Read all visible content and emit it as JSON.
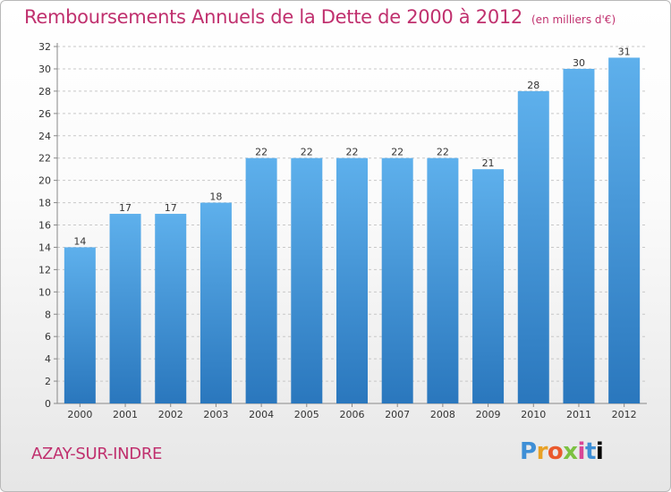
{
  "header": {
    "title": "Remboursements Annuels de la Dette de 2000 à 2012",
    "unit": "(en milliers d'€)"
  },
  "footer": {
    "town": "AZAY-SUR-INDRE",
    "logo": [
      "P",
      "r",
      "o",
      "x",
      "i",
      "t",
      "i"
    ]
  },
  "colors": {
    "title": "#c0306e",
    "bar_top": "#5eb0ec",
    "bar_bottom": "#2a77bd",
    "grid": "#c8c8c8"
  },
  "chart_data": {
    "type": "bar",
    "title": "Remboursements Annuels de la Dette de 2000 à 2012",
    "ylabel": "",
    "xlabel": "",
    "categories": [
      "2000",
      "2001",
      "2002",
      "2003",
      "2004",
      "2005",
      "2006",
      "2007",
      "2008",
      "2009",
      "2010",
      "2011",
      "2012"
    ],
    "values": [
      14,
      17,
      17,
      18,
      22,
      22,
      22,
      22,
      22,
      21,
      28,
      30,
      31
    ],
    "ylim": [
      0,
      32
    ],
    "yticks": [
      0,
      2,
      4,
      6,
      8,
      10,
      12,
      14,
      16,
      18,
      20,
      22,
      24,
      26,
      28,
      30,
      32
    ],
    "grid": true,
    "grid_style": "dashed-horizontal"
  }
}
